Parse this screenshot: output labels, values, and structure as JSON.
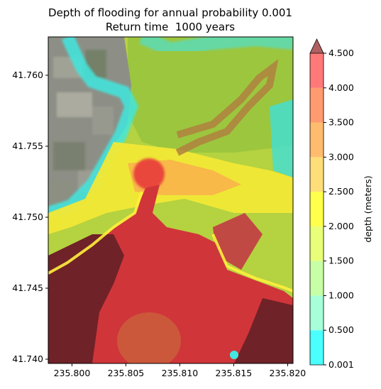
{
  "chart_data": {
    "type": "heatmap",
    "title": "Depth of flooding for annual probability 0.001",
    "subtitle": "Return time  1000 years",
    "xlabel": "",
    "ylabel": "",
    "x_range": [
      235.7978,
      235.8205
    ],
    "y_range": [
      41.7397,
      41.7627
    ],
    "x_ticks": [
      "235.800",
      "235.805",
      "235.810",
      "235.815",
      "235.820"
    ],
    "x_tick_values": [
      235.8,
      235.805,
      235.81,
      235.815,
      235.82
    ],
    "y_ticks": [
      "41.740",
      "41.745",
      "41.750",
      "41.755",
      "41.760"
    ],
    "y_tick_values": [
      41.74,
      41.745,
      41.75,
      41.755,
      41.76
    ],
    "colorbar": {
      "label": "depth (meters)",
      "levels": [
        "0.001",
        "0.500",
        "1.000",
        "1.500",
        "2.000",
        "2.500",
        "3.000",
        "3.500",
        "4.000",
        "4.500"
      ],
      "colors": [
        "#00ffff",
        "#80ffc8",
        "#b0ff80",
        "#e0ff40",
        "#ffff00",
        "#ffd040",
        "#ffa030",
        "#ff7030",
        "#ff4040"
      ],
      "extend_color": "#b06060"
    },
    "background": "satellite imagery"
  }
}
